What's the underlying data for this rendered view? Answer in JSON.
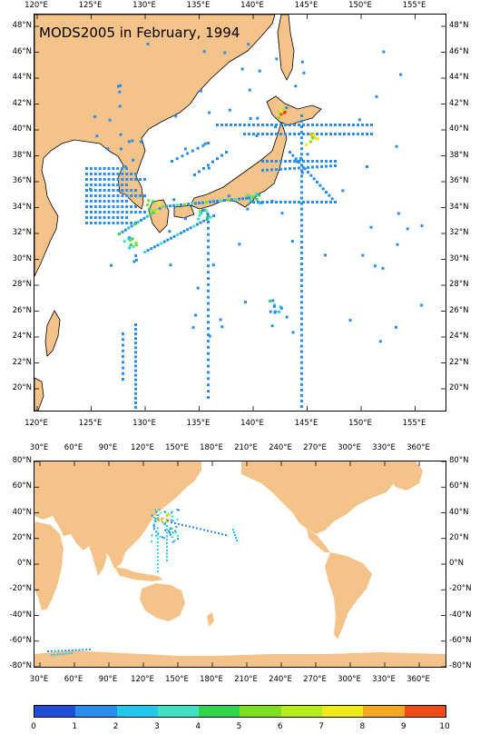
{
  "regional_map": {
    "title": "MODS2005 in February, 1994",
    "lon_labels": [
      "120°E",
      "125°E",
      "130°E",
      "135°E",
      "140°E",
      "145°E",
      "150°E",
      "155°E"
    ],
    "lat_labels": [
      "48°N",
      "46°N",
      "44°N",
      "42°N",
      "40°N",
      "38°N",
      "36°N",
      "34°N",
      "32°N",
      "30°N",
      "28°N",
      "26°N",
      "24°N",
      "22°N",
      "20°N"
    ],
    "extent": {
      "lon": [
        119.5,
        157.5
      ],
      "lat": [
        18.7,
        49.5
      ]
    }
  },
  "global_map": {
    "lon_labels": [
      "30°E",
      "60°E",
      "90°E",
      "120°E",
      "150°E",
      "180°E",
      "210°E",
      "240°E",
      "270°E",
      "300°E",
      "330°E",
      "360°E"
    ],
    "lat_labels": [
      "80°N",
      "60°N",
      "40°N",
      "20°N",
      "0°N",
      "-20°N",
      "-40°N",
      "-60°N",
      "-80°N"
    ],
    "extent": {
      "lon": [
        17,
        372
      ],
      "lat": [
        -80,
        80
      ]
    }
  },
  "colorbar": {
    "ticks": [
      "0",
      "1",
      "2",
      "3",
      "4",
      "5",
      "6",
      "7",
      "8",
      "9",
      "10"
    ],
    "colors": [
      "#1f4fd8",
      "#2a8ef0",
      "#1fc8ec",
      "#3de3c3",
      "#2cd84a",
      "#7ce01c",
      "#b8ec1a",
      "#f0ea1c",
      "#f7a81c",
      "#ef4a18"
    ]
  },
  "colors": {
    "land": "#f4c38a",
    "ocean": "#ffffff",
    "border": "#000000"
  }
}
